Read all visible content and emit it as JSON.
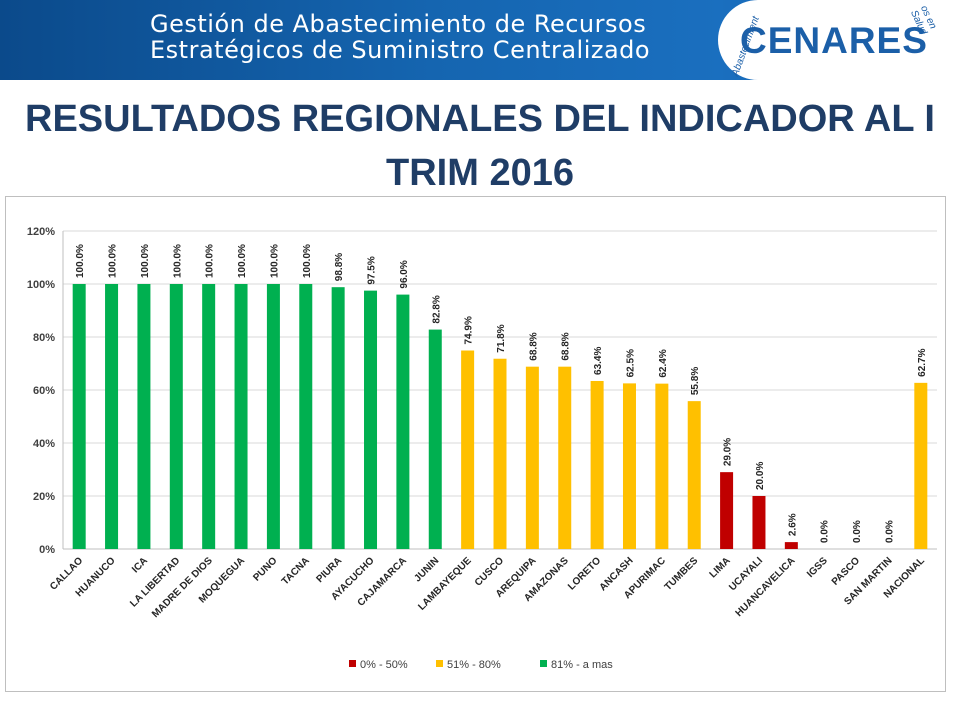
{
  "banner": {
    "line1": "Gestión de Abastecimiento de Recursos",
    "line2": "Estratégicos de Suministro Centralizado",
    "logo_text": "CENARES",
    "logo_arc_left": "Abastecimient",
    "logo_arc_right": "os en Salud"
  },
  "title": "RESULTADOS REGIONALES DEL INDICADOR AL I TRIM 2016",
  "chart_data": {
    "type": "bar",
    "title": "",
    "xlabel": "",
    "ylabel": "",
    "ylim": [
      0,
      120
    ],
    "yticks": [
      "0%",
      "20%",
      "40%",
      "60%",
      "80%",
      "100%",
      "120%"
    ],
    "grid": true,
    "legend_position": "bottom",
    "categories": [
      "CALLAO",
      "HUANUCO",
      "ICA",
      "LA LIBERTAD",
      "MADRE DE DIOS",
      "MOQUEGUA",
      "PUNO",
      "TACNA",
      "PIURA",
      "AYACUCHO",
      "CAJAMARCA",
      "JUNIN",
      "LAMBAYEQUE",
      "CUSCO",
      "AREQUIPA",
      "AMAZONAS",
      "LORETO",
      "ANCASH",
      "APURIMAC",
      "TUMBES",
      "LIMA",
      "UCAYALI",
      "HUANCAVELICA",
      "IGSS",
      "PASCO",
      "SAN MARTIN",
      "NACIONAL"
    ],
    "values": [
      100.0,
      100.0,
      100.0,
      100.0,
      100.0,
      100.0,
      100.0,
      100.0,
      98.8,
      97.5,
      96.0,
      82.8,
      74.9,
      71.8,
      68.8,
      68.8,
      63.4,
      62.5,
      62.4,
      55.8,
      29.0,
      20.0,
      2.6,
      0.0,
      0.0,
      0.0,
      62.7
    ],
    "labels": [
      "100.0%",
      "100.0%",
      "100.0%",
      "100.0%",
      "100.0%",
      "100.0%",
      "100.0%",
      "100.0%",
      "98.8%",
      "97.5%",
      "96.0%",
      "82.8%",
      "74.9%",
      "71.8%",
      "68.8%",
      "68.8%",
      "63.4%",
      "62.5%",
      "62.4%",
      "55.8%",
      "29.0%",
      "20.0%",
      "2.6%",
      "0.0%",
      "0.0%",
      "0.0%",
      "62.7%"
    ],
    "bar_groups": [
      2,
      2,
      2,
      2,
      2,
      2,
      2,
      2,
      2,
      2,
      2,
      2,
      1,
      1,
      1,
      1,
      1,
      1,
      1,
      1,
      0,
      0,
      0,
      0,
      0,
      0,
      1
    ],
    "legend": [
      {
        "label": "0% - 50%",
        "color": "#c00000"
      },
      {
        "label": "51% - 80%",
        "color": "#ffc000"
      },
      {
        "label": "81% - a mas",
        "color": "#00b050"
      }
    ]
  }
}
